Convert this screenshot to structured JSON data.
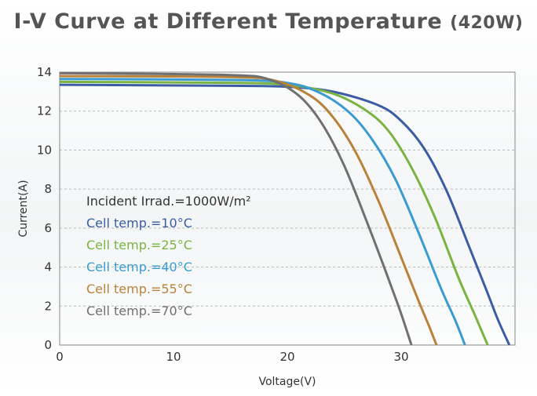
{
  "chart_data": {
    "type": "line",
    "title": "I-V Curve at Different Temperature",
    "title_suffix": "(420W)",
    "xlabel": "Voltage(V)",
    "ylabel": "Current(A)",
    "xlim": [
      0,
      40
    ],
    "ylim": [
      0,
      14
    ],
    "x_ticks": [
      0,
      10,
      20,
      30
    ],
    "y_ticks": [
      0,
      2,
      4,
      6,
      8,
      10,
      12,
      14
    ],
    "grid": "horizontal dashed",
    "annotations": [
      {
        "text": "Incident Irrad.=1000W/m²",
        "color": "#333333"
      }
    ],
    "series": [
      {
        "name": "Cell temp.=10°C",
        "color": "#3b5da3",
        "isc": 13.35,
        "voc": 39.5,
        "knee_v": 30.5,
        "x": [
          0,
          15,
          20,
          24,
          28,
          30,
          32,
          34,
          36,
          37.5,
          38.5,
          39.5
        ],
        "y": [
          13.35,
          13.3,
          13.25,
          13.0,
          12.3,
          11.5,
          10.1,
          7.9,
          5.0,
          2.8,
          1.3,
          0
        ]
      },
      {
        "name": "Cell temp.=25°C",
        "color": "#7bb342",
        "isc": 13.5,
        "voc": 37.6,
        "knee_v": 29,
        "x": [
          0,
          15,
          20,
          24,
          27,
          29,
          31,
          33,
          35,
          36.5,
          37.6
        ],
        "y": [
          13.5,
          13.45,
          13.35,
          12.9,
          12.0,
          10.9,
          9.0,
          6.5,
          3.5,
          1.5,
          0
        ]
      },
      {
        "name": "Cell temp.=40°C",
        "color": "#3a9bd0",
        "isc": 13.65,
        "voc": 35.6,
        "knee_v": 27.5,
        "x": [
          0,
          15,
          20,
          23,
          25.5,
          27.5,
          29.5,
          31.5,
          33.5,
          34.8,
          35.6
        ],
        "y": [
          13.65,
          13.6,
          13.45,
          12.9,
          11.9,
          10.5,
          8.5,
          5.8,
          2.9,
          1.2,
          0
        ]
      },
      {
        "name": "Cell temp.=55°C",
        "color": "#b8823a",
        "isc": 13.8,
        "voc": 33.1,
        "knee_v": 25.5,
        "x": [
          0,
          15,
          19,
          22,
          24,
          26,
          28,
          30,
          31.5,
          32.5,
          33.1
        ],
        "y": [
          13.8,
          13.75,
          13.55,
          12.8,
          11.7,
          9.9,
          7.4,
          4.5,
          2.3,
          0.9,
          0
        ]
      },
      {
        "name": "Cell temp.=70°C",
        "color": "#707070",
        "isc": 13.95,
        "voc": 30.9,
        "knee_v": 24,
        "x": [
          0,
          15,
          18.5,
          21,
          23,
          25,
          27,
          28.5,
          29.7,
          30.4,
          30.9
        ],
        "y": [
          13.95,
          13.85,
          13.6,
          12.8,
          11.4,
          9.2,
          6.3,
          4.0,
          2.1,
          0.9,
          0
        ]
      }
    ]
  }
}
